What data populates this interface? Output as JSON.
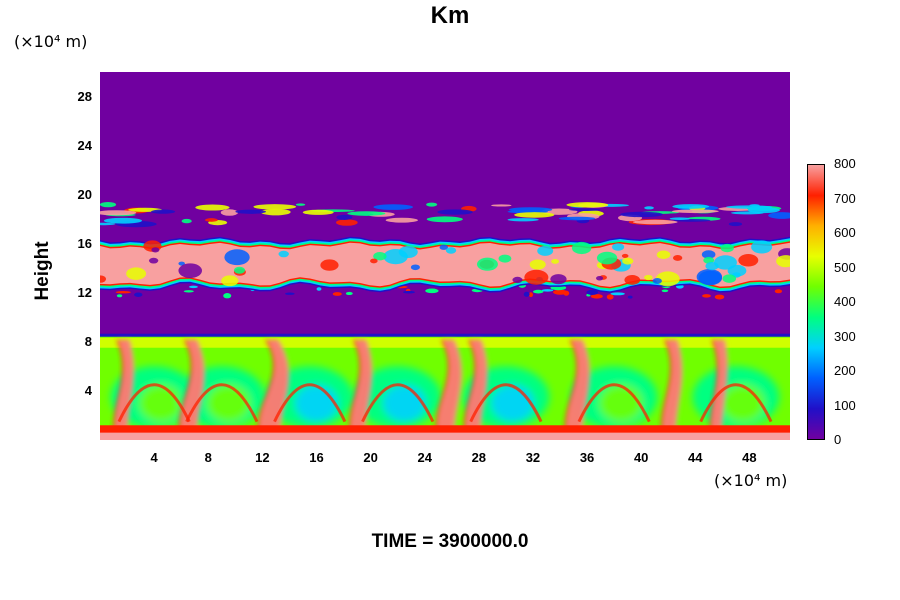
{
  "chart_data": {
    "type": "heatmap",
    "title": "Km",
    "ylabel": "Height",
    "y_unit": "(×10⁴ m)",
    "x_unit": "(×10⁴ m)",
    "xlabel": "",
    "x_ticks": [
      4,
      8,
      12,
      16,
      20,
      24,
      28,
      32,
      36,
      40,
      44,
      48
    ],
    "y_ticks": [
      4,
      8,
      12,
      16,
      20,
      24,
      28
    ],
    "xlim": [
      0,
      51
    ],
    "ylim": [
      0,
      30
    ],
    "colorbar": {
      "min": 0,
      "max": 800,
      "tick_labels": [
        0,
        100,
        200,
        300,
        400,
        500,
        600,
        700,
        800
      ],
      "colors": [
        "#7000a0",
        "#2010c8",
        "#0060ff",
        "#00d0ff",
        "#00ff80",
        "#70ff00",
        "#e8ff00",
        "#ffb000",
        "#ff2000",
        "#f8a0a0"
      ]
    },
    "features": [
      {
        "name": "background (upper)",
        "y_range": [
          19.5,
          30
        ],
        "value": 0
      },
      {
        "name": "upper thin cloud layer",
        "y_range": [
          17.5,
          19.3
        ],
        "value": "mixed 100-800"
      },
      {
        "name": "mid cloud layer",
        "y_range": [
          12.5,
          16.2
        ],
        "value": "mostly 800"
      },
      {
        "name": "background (middle)",
        "y_range": [
          8.5,
          12
        ],
        "value": 0
      },
      {
        "name": "boundary layer convective cells",
        "y_range": [
          0,
          8.5
        ],
        "value": "300-800"
      }
    ],
    "time": {
      "label": "TIME = ",
      "value": "3900000.0"
    }
  }
}
